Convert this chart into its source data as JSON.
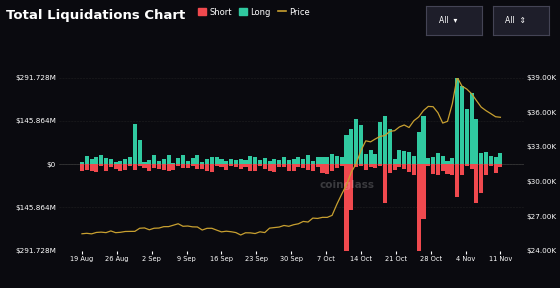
{
  "title": "Total Liquidations Chart",
  "bg_color": "#0a0a0f",
  "plot_bg": "#0a0a0f",
  "grid_color": "#2a2a2a",
  "short_color": "#f0494e",
  "long_color": "#30c9a0",
  "price_color": "#c8a030",
  "xtick_labels": [
    "19 Aug",
    "26 Aug",
    "2 Sep",
    "9 Sep",
    "16 Sep",
    "23 Sep",
    "30 Sep",
    "7 Oct",
    "14 Oct",
    "21 Oct",
    "28 Oct",
    "4 Nov",
    "11 Nov"
  ],
  "n_bars": 88,
  "ylim_left": [
    -291728000,
    291728000
  ],
  "ylim_right": [
    24000,
    39000
  ],
  "watermark": "coinglass",
  "legend_items": [
    "Short",
    "Long",
    "Price"
  ],
  "legend_colors": [
    "#f0494e",
    "#30c9a0",
    "#c8a030"
  ],
  "figsize": [
    5.6,
    2.88
  ],
  "dpi": 100
}
